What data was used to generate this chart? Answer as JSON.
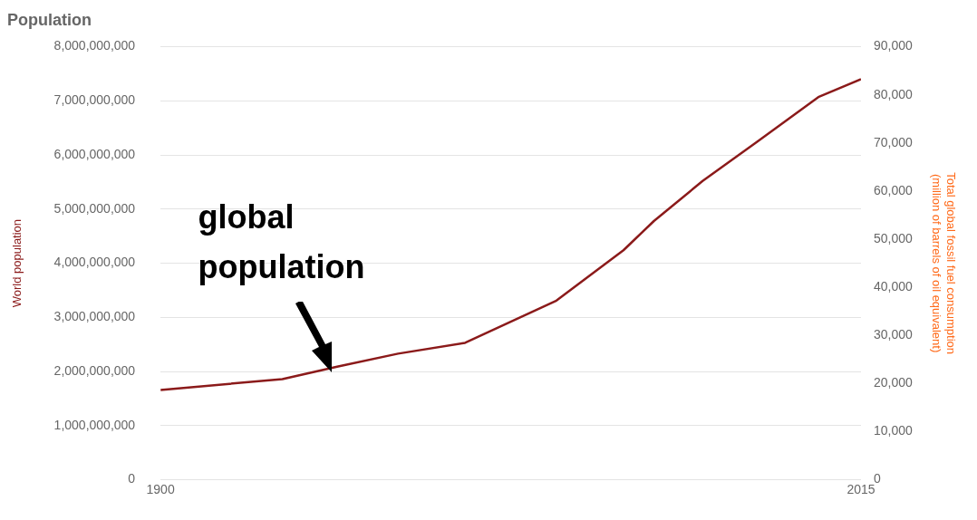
{
  "chart_data": {
    "type": "line",
    "title": "Population",
    "ylabel": "World population",
    "y2label": "Total global fossil fuel consumption (million of barrels of oil equivalent)",
    "x": [
      1900,
      1920,
      1929,
      1939,
      1950,
      1965,
      1976,
      1981,
      1989,
      1998,
      2008,
      2015
    ],
    "series": [
      {
        "color": "#8b1a1a",
        "values": [
          1660000000,
          1860000000,
          2090000000,
          2330000000,
          2530000000,
          3310000000,
          4240000000,
          4780000000,
          5520000000,
          6250000000,
          7070000000,
          7400000000
        ]
      }
    ],
    "xlim": [
      1900,
      2015
    ],
    "xticks": [
      1900,
      2015
    ],
    "ylim": [
      0,
      8000000000
    ],
    "yticks": [
      0,
      {
        "value": 1000000000,
        "label": "1,000,000,000"
      },
      {
        "value": 2000000000,
        "label": "2,000,000,000"
      },
      {
        "value": 3000000000,
        "label": "3,000,000,000"
      },
      {
        "value": 4000000000,
        "label": "4,000,000,000"
      },
      {
        "value": 5000000000,
        "label": "5,000,000,000"
      },
      {
        "value": 6000000000,
        "label": "6,000,000,000"
      },
      {
        "value": 7000000000,
        "label": "7,000,000,000"
      },
      {
        "value": 8000000000,
        "label": "8,000,000,000"
      }
    ],
    "y2lim": [
      0,
      90000
    ],
    "y2ticks": [
      0,
      {
        "value": 10000,
        "label": "10,000"
      },
      {
        "value": 20000,
        "label": "20,000"
      },
      {
        "value": 30000,
        "label": "30,000"
      },
      {
        "value": 40000,
        "label": "40,000"
      },
      {
        "value": 50000,
        "label": "50,000"
      },
      {
        "value": 60000,
        "label": "60,000"
      },
      {
        "value": 70000,
        "label": "70,000"
      },
      {
        "value": 80000,
        "label": "80,000"
      },
      {
        "value": 90000,
        "label": "90,000"
      }
    ],
    "grid": "y",
    "legend": false,
    "marker": "none",
    "line_style": "solid",
    "annotations": [
      {
        "text": "global population",
        "x": 1927,
        "y": 2050000000
      }
    ]
  }
}
